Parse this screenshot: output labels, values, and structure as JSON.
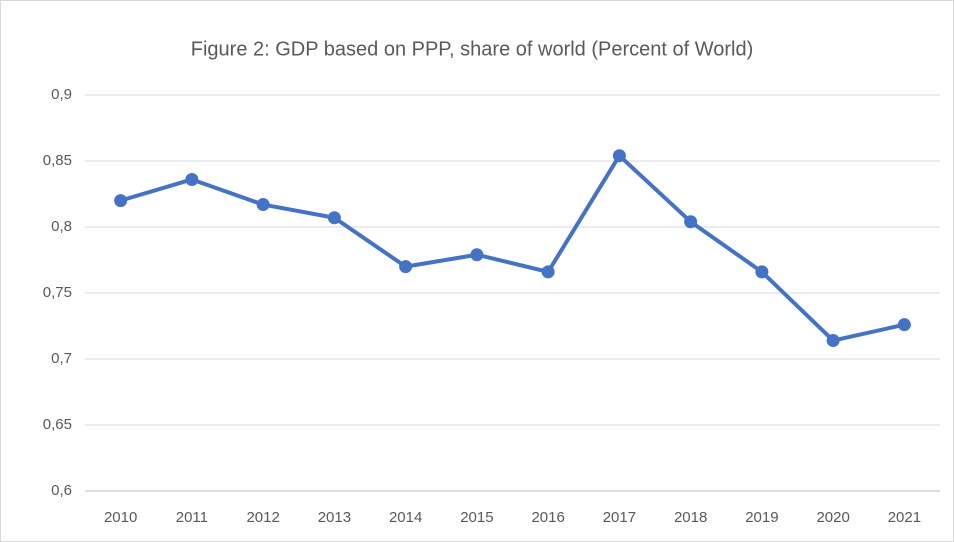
{
  "chart_data": {
    "type": "line",
    "title": "Figure 2: GDP based on PPP, share of world (Percent of World)",
    "categories": [
      "2010",
      "2011",
      "2012",
      "2013",
      "2014",
      "2015",
      "2016",
      "2017",
      "2018",
      "2019",
      "2020",
      "2021"
    ],
    "series": [
      {
        "name": "GDP based on PPP, share of world",
        "color": "#4472c4",
        "values": [
          0.82,
          0.836,
          0.817,
          0.807,
          0.77,
          0.779,
          0.766,
          0.854,
          0.804,
          0.766,
          0.714,
          0.726
        ]
      }
    ],
    "ylim": [
      0.6,
      0.9
    ],
    "yticks": [
      {
        "value": 0.6,
        "label": "0,6"
      },
      {
        "value": 0.65,
        "label": "0,65"
      },
      {
        "value": 0.7,
        "label": "0,7"
      },
      {
        "value": 0.75,
        "label": "0,75"
      },
      {
        "value": 0.8,
        "label": "0,8"
      },
      {
        "value": 0.85,
        "label": "0,85"
      },
      {
        "value": 0.9,
        "label": "0,9"
      }
    ],
    "grid": true
  }
}
